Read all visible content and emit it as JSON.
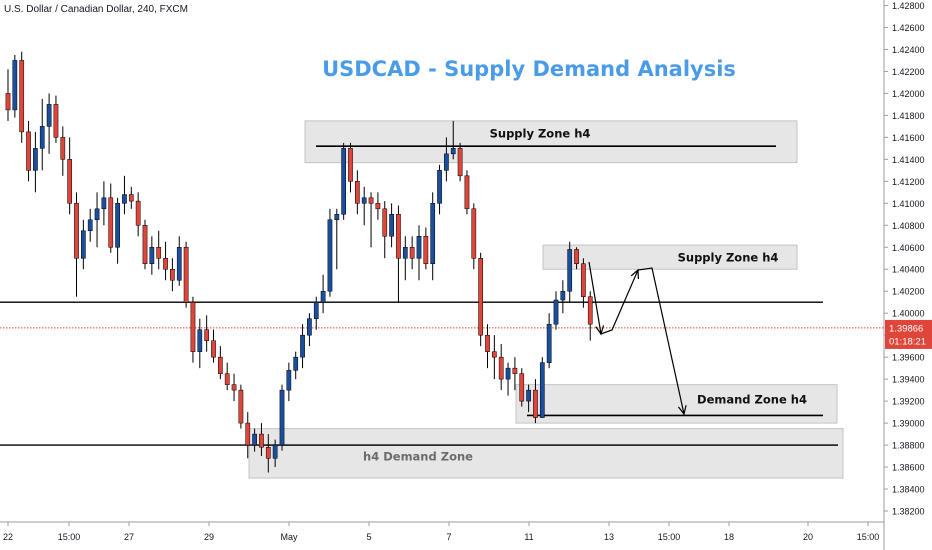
{
  "header": {
    "symbol_line": "U.S. Dollar / Canadian Dollar, 240, FXCM"
  },
  "chart_data": {
    "type": "candlestick",
    "title": "USDCAD - Supply Demand Analysis",
    "y_axis": {
      "ylim": [
        1.381,
        1.4285
      ],
      "ticks": [
        "1.42800",
        "1.42600",
        "1.42400",
        "1.42200",
        "1.42000",
        "1.41800",
        "1.41600",
        "1.41400",
        "1.41200",
        "1.41000",
        "1.40800",
        "1.40600",
        "1.40400",
        "1.40200",
        "1.40000",
        "1.39800",
        "1.39600",
        "1.39400",
        "1.39200",
        "1.39000",
        "1.38800",
        "1.38600",
        "1.38400",
        "1.38200"
      ]
    },
    "x_axis": {
      "ticks": [
        "22",
        "15:00",
        "27",
        "29",
        "May",
        "5",
        "7",
        "11",
        "13",
        "15:00",
        "18",
        "20",
        "15:00"
      ]
    },
    "current_price": {
      "value": 1.39866,
      "label": "1.39866",
      "countdown": "01:18:21"
    },
    "colors": {
      "bull": "#1a4fa0",
      "bear": "#e0453a",
      "title": "#4a9be8",
      "zone": "#e6e6e6",
      "zone_border": "#c4c4c4",
      "price_tag": "#e0453a"
    },
    "zones": [
      {
        "label": "Supply Zone h4",
        "top": 1.4175,
        "bottom": 1.4137,
        "line": 1.4152
      },
      {
        "label": "Supply Zone h4",
        "top": 1.4062,
        "bottom": 1.404
      },
      {
        "label": "Demand Zone h4",
        "top": 1.3935,
        "bottom": 1.39,
        "line": 1.3907
      },
      {
        "label": "h4 Demand Zone",
        "top": 1.3895,
        "bottom": 1.385,
        "line": 1.388
      }
    ],
    "horizontal_levels": [
      1.401,
      1.388
    ],
    "candles": [
      {
        "o": 1.42,
        "h": 1.4222,
        "l": 1.4175,
        "c": 1.4185
      },
      {
        "o": 1.4185,
        "h": 1.4235,
        "l": 1.4178,
        "c": 1.423
      },
      {
        "o": 1.423,
        "h": 1.4238,
        "l": 1.4155,
        "c": 1.4165
      },
      {
        "o": 1.4165,
        "h": 1.4175,
        "l": 1.412,
        "c": 1.413
      },
      {
        "o": 1.413,
        "h": 1.4165,
        "l": 1.411,
        "c": 1.415
      },
      {
        "o": 1.415,
        "h": 1.4195,
        "l": 1.413,
        "c": 1.417
      },
      {
        "o": 1.417,
        "h": 1.42,
        "l": 1.4145,
        "c": 1.419
      },
      {
        "o": 1.419,
        "h": 1.4198,
        "l": 1.4155,
        "c": 1.416
      },
      {
        "o": 1.416,
        "h": 1.417,
        "l": 1.4125,
        "c": 1.414
      },
      {
        "o": 1.414,
        "h": 1.416,
        "l": 1.409,
        "c": 1.41
      },
      {
        "o": 1.41,
        "h": 1.411,
        "l": 1.4015,
        "c": 1.405
      },
      {
        "o": 1.405,
        "h": 1.4085,
        "l": 1.404,
        "c": 1.4075
      },
      {
        "o": 1.4075,
        "h": 1.4095,
        "l": 1.4065,
        "c": 1.4085
      },
      {
        "o": 1.4085,
        "h": 1.411,
        "l": 1.406,
        "c": 1.4095
      },
      {
        "o": 1.4095,
        "h": 1.412,
        "l": 1.408,
        "c": 1.4105
      },
      {
        "o": 1.4105,
        "h": 1.4118,
        "l": 1.4055,
        "c": 1.406
      },
      {
        "o": 1.406,
        "h": 1.4105,
        "l": 1.4045,
        "c": 1.41
      },
      {
        "o": 1.41,
        "h": 1.4125,
        "l": 1.409,
        "c": 1.4108
      },
      {
        "o": 1.4108,
        "h": 1.4115,
        "l": 1.4095,
        "c": 1.4102
      },
      {
        "o": 1.4102,
        "h": 1.411,
        "l": 1.407,
        "c": 1.408
      },
      {
        "o": 1.408,
        "h": 1.4085,
        "l": 1.404,
        "c": 1.4045
      },
      {
        "o": 1.4045,
        "h": 1.407,
        "l": 1.4035,
        "c": 1.406
      },
      {
        "o": 1.406,
        "h": 1.4075,
        "l": 1.404,
        "c": 1.405
      },
      {
        "o": 1.405,
        "h": 1.4065,
        "l": 1.403,
        "c": 1.404
      },
      {
        "o": 1.404,
        "h": 1.405,
        "l": 1.402,
        "c": 1.403
      },
      {
        "o": 1.403,
        "h": 1.407,
        "l": 1.4025,
        "c": 1.406
      },
      {
        "o": 1.406,
        "h": 1.4065,
        "l": 1.4005,
        "c": 1.401
      },
      {
        "o": 1.401,
        "h": 1.4015,
        "l": 1.3955,
        "c": 1.3965
      },
      {
        "o": 1.3965,
        "h": 1.3995,
        "l": 1.395,
        "c": 1.3985
      },
      {
        "o": 1.3985,
        "h": 1.3998,
        "l": 1.3965,
        "c": 1.3975
      },
      {
        "o": 1.3975,
        "h": 1.3985,
        "l": 1.3955,
        "c": 1.396
      },
      {
        "o": 1.396,
        "h": 1.397,
        "l": 1.394,
        "c": 1.3945
      },
      {
        "o": 1.3945,
        "h": 1.3955,
        "l": 1.393,
        "c": 1.3935
      },
      {
        "o": 1.3935,
        "h": 1.3945,
        "l": 1.392,
        "c": 1.393
      },
      {
        "o": 1.393,
        "h": 1.3935,
        "l": 1.3895,
        "c": 1.39
      },
      {
        "o": 1.39,
        "h": 1.391,
        "l": 1.3868,
        "c": 1.388
      },
      {
        "o": 1.388,
        "h": 1.3895,
        "l": 1.3874,
        "c": 1.389
      },
      {
        "o": 1.389,
        "h": 1.39,
        "l": 1.387,
        "c": 1.3878
      },
      {
        "o": 1.3878,
        "h": 1.389,
        "l": 1.3855,
        "c": 1.3868
      },
      {
        "o": 1.3868,
        "h": 1.3885,
        "l": 1.386,
        "c": 1.388
      },
      {
        "o": 1.388,
        "h": 1.3935,
        "l": 1.3875,
        "c": 1.393
      },
      {
        "o": 1.393,
        "h": 1.3955,
        "l": 1.392,
        "c": 1.3948
      },
      {
        "o": 1.3948,
        "h": 1.3965,
        "l": 1.394,
        "c": 1.396
      },
      {
        "o": 1.396,
        "h": 1.399,
        "l": 1.395,
        "c": 1.398
      },
      {
        "o": 1.398,
        "h": 1.4,
        "l": 1.397,
        "c": 1.3995
      },
      {
        "o": 1.3995,
        "h": 1.4015,
        "l": 1.3985,
        "c": 1.401
      },
      {
        "o": 1.401,
        "h": 1.4035,
        "l": 1.4,
        "c": 1.402
      },
      {
        "o": 1.402,
        "h": 1.4095,
        "l": 1.4015,
        "c": 1.4085
      },
      {
        "o": 1.4085,
        "h": 1.4095,
        "l": 1.404,
        "c": 1.409
      },
      {
        "o": 1.409,
        "h": 1.4155,
        "l": 1.4085,
        "c": 1.415
      },
      {
        "o": 1.415,
        "h": 1.4155,
        "l": 1.411,
        "c": 1.412
      },
      {
        "o": 1.412,
        "h": 1.413,
        "l": 1.409,
        "c": 1.41
      },
      {
        "o": 1.41,
        "h": 1.4115,
        "l": 1.408,
        "c": 1.4105
      },
      {
        "o": 1.4105,
        "h": 1.411,
        "l": 1.406,
        "c": 1.41
      },
      {
        "o": 1.41,
        "h": 1.411,
        "l": 1.4085,
        "c": 1.4095
      },
      {
        "o": 1.4095,
        "h": 1.4102,
        "l": 1.405,
        "c": 1.407
      },
      {
        "o": 1.407,
        "h": 1.41,
        "l": 1.406,
        "c": 1.409
      },
      {
        "o": 1.409,
        "h": 1.4098,
        "l": 1.401,
        "c": 1.405
      },
      {
        "o": 1.405,
        "h": 1.407,
        "l": 1.403,
        "c": 1.406
      },
      {
        "o": 1.406,
        "h": 1.407,
        "l": 1.404,
        "c": 1.405
      },
      {
        "o": 1.405,
        "h": 1.408,
        "l": 1.403,
        "c": 1.407
      },
      {
        "o": 1.407,
        "h": 1.4078,
        "l": 1.404,
        "c": 1.4045
      },
      {
        "o": 1.4045,
        "h": 1.411,
        "l": 1.403,
        "c": 1.41
      },
      {
        "o": 1.41,
        "h": 1.4135,
        "l": 1.409,
        "c": 1.413
      },
      {
        "o": 1.413,
        "h": 1.416,
        "l": 1.412,
        "c": 1.4145
      },
      {
        "o": 1.4145,
        "h": 1.4175,
        "l": 1.414,
        "c": 1.415
      },
      {
        "o": 1.415,
        "h": 1.4155,
        "l": 1.412,
        "c": 1.4125
      },
      {
        "o": 1.4125,
        "h": 1.413,
        "l": 1.409,
        "c": 1.4095
      },
      {
        "o": 1.4095,
        "h": 1.41,
        "l": 1.404,
        "c": 1.405
      },
      {
        "o": 1.405,
        "h": 1.4055,
        "l": 1.397,
        "c": 1.398
      },
      {
        "o": 1.398,
        "h": 1.399,
        "l": 1.395,
        "c": 1.3965
      },
      {
        "o": 1.3965,
        "h": 1.398,
        "l": 1.394,
        "c": 1.396
      },
      {
        "o": 1.396,
        "h": 1.3972,
        "l": 1.393,
        "c": 1.394
      },
      {
        "o": 1.394,
        "h": 1.3955,
        "l": 1.3925,
        "c": 1.395
      },
      {
        "o": 1.395,
        "h": 1.396,
        "l": 1.393,
        "c": 1.3945
      },
      {
        "o": 1.3945,
        "h": 1.395,
        "l": 1.3915,
        "c": 1.392
      },
      {
        "o": 1.392,
        "h": 1.3935,
        "l": 1.391,
        "c": 1.393
      },
      {
        "o": 1.393,
        "h": 1.394,
        "l": 1.39,
        "c": 1.3905
      },
      {
        "o": 1.3905,
        "h": 1.396,
        "l": 1.3905,
        "c": 1.3955
      },
      {
        "o": 1.3955,
        "h": 1.4,
        "l": 1.395,
        "c": 1.399
      },
      {
        "o": 1.399,
        "h": 1.402,
        "l": 1.3985,
        "c": 1.4012
      },
      {
        "o": 1.4012,
        "h": 1.403,
        "l": 1.4,
        "c": 1.402
      },
      {
        "o": 1.402,
        "h": 1.4065,
        "l": 1.401,
        "c": 1.4058
      },
      {
        "o": 1.4058,
        "h": 1.406,
        "l": 1.404,
        "c": 1.4045
      },
      {
        "o": 1.4045,
        "h": 1.405,
        "l": 1.4005,
        "c": 1.4015
      },
      {
        "o": 1.4015,
        "h": 1.402,
        "l": 1.3975,
        "c": 1.399
      }
    ]
  }
}
